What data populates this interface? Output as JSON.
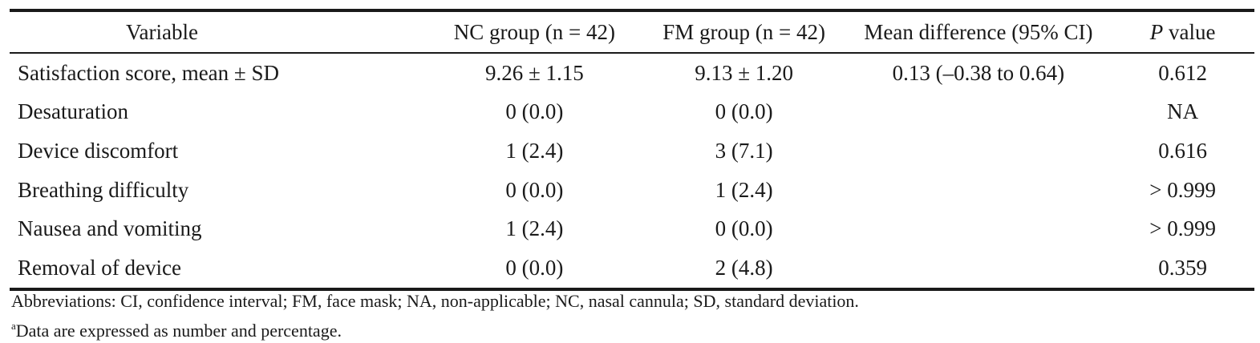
{
  "table": {
    "headers": {
      "variable": "Variable",
      "nc_group": "NC group (n = 42)",
      "fm_group": "FM group (n = 42)",
      "mean_difference": "Mean difference (95% CI)",
      "p_value_letter": "P",
      "p_value_rest": " value"
    },
    "rows": [
      {
        "variable": "Satisfaction score, mean ± SD",
        "nc": "9.26 ± 1.15",
        "fm": "9.13 ± 1.20",
        "md": "0.13 (–0.38 to 0.64)",
        "p": "0.612"
      },
      {
        "variable": "Desaturation",
        "nc": "0 (0.0)",
        "fm": "0 (0.0)",
        "md": "",
        "p": "NA"
      },
      {
        "variable": "Device discomfort",
        "nc": "1 (2.4)",
        "fm": "3 (7.1)",
        "md": "",
        "p": "0.616"
      },
      {
        "variable": "Breathing difficulty",
        "nc": "0 (0.0)",
        "fm": "1 (2.4)",
        "md": "",
        "p": "> 0.999"
      },
      {
        "variable": "Nausea and vomiting",
        "nc": "1 (2.4)",
        "fm": "0 (0.0)",
        "md": "",
        "p": "> 0.999"
      },
      {
        "variable": "Removal of device",
        "nc": "0 (0.0)",
        "fm": "2 (4.8)",
        "md": "",
        "p": "0.359"
      }
    ]
  },
  "footnotes": {
    "abbreviations": "Abbreviations: CI, confidence interval; FM, face mask; NA, non-applicable; NC, nasal cannula; SD, standard deviation.",
    "data_note_marker": "a",
    "data_note": "Data are expressed as number and percentage."
  }
}
